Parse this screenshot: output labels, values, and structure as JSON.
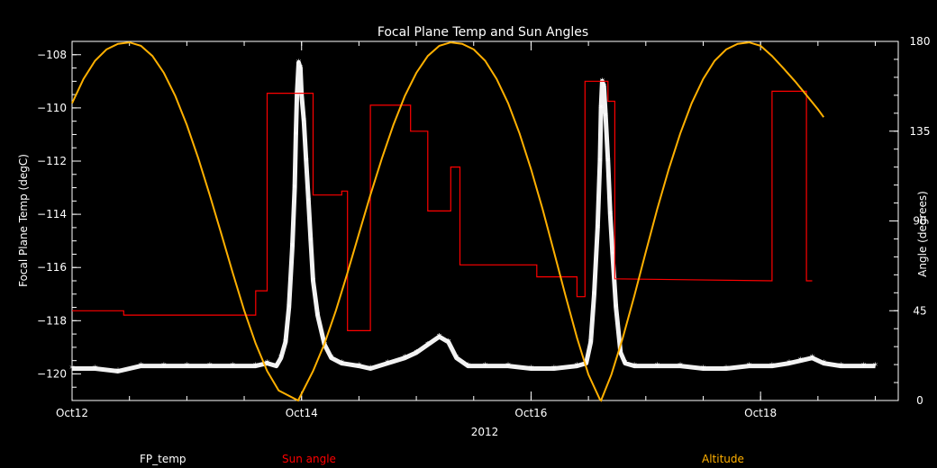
{
  "chart_data": {
    "type": "line",
    "title": "Focal Plane Temp and Sun Angles",
    "xlabel": "2012",
    "ylabel_left": "Focal Plane Temp (degC)",
    "ylabel_right": "Angle (degrees)",
    "x_ticks": [
      {
        "day": 12,
        "label": "Oct12"
      },
      {
        "day": 14,
        "label": "Oct14"
      },
      {
        "day": 16,
        "label": "Oct16"
      },
      {
        "day": 18,
        "label": "Oct18"
      }
    ],
    "xlim": [
      12,
      19.2
    ],
    "ylim_left": [
      -121,
      -107.5
    ],
    "ylim_right": [
      0,
      180
    ],
    "y_ticks_left": [
      -108,
      -110,
      -112,
      -114,
      -116,
      -118,
      -120
    ],
    "y_ticks_right": [
      180,
      135,
      90,
      45,
      0
    ],
    "grid": false,
    "colors": {
      "fp_temp": "#ffffff",
      "sun_angle": "#ff0000",
      "altitude": "#ffb000",
      "background": "#000000"
    },
    "legend": {
      "placement": "bottom",
      "items": [
        {
          "label": "FP_temp",
          "color": "#ffffff"
        },
        {
          "label": "Sun angle",
          "color": "#ff0000"
        },
        {
          "label": "Altitude",
          "color": "#ffb000"
        }
      ]
    },
    "series": [
      {
        "name": "FP_temp",
        "axis": "left",
        "marker": "*",
        "points": [
          [
            12.0,
            -119.8
          ],
          [
            12.2,
            -119.8
          ],
          [
            12.4,
            -119.9
          ],
          [
            12.6,
            -119.7
          ],
          [
            12.8,
            -119.7
          ],
          [
            13.0,
            -119.7
          ],
          [
            13.2,
            -119.7
          ],
          [
            13.4,
            -119.7
          ],
          [
            13.6,
            -119.7
          ],
          [
            13.7,
            -119.6
          ],
          [
            13.78,
            -119.7
          ],
          [
            13.82,
            -119.4
          ],
          [
            13.86,
            -118.8
          ],
          [
            13.89,
            -117.5
          ],
          [
            13.92,
            -115.2
          ],
          [
            13.94,
            -113.0
          ],
          [
            13.95,
            -111.0
          ],
          [
            13.96,
            -109.5
          ],
          [
            13.975,
            -108.3
          ],
          [
            13.99,
            -108.5
          ],
          [
            14.0,
            -109.5
          ],
          [
            14.02,
            -110.5
          ],
          [
            14.04,
            -112.0
          ],
          [
            14.06,
            -113.5
          ],
          [
            14.08,
            -115.0
          ],
          [
            14.1,
            -116.5
          ],
          [
            14.14,
            -117.8
          ],
          [
            14.2,
            -118.9
          ],
          [
            14.26,
            -119.4
          ],
          [
            14.35,
            -119.6
          ],
          [
            14.5,
            -119.7
          ],
          [
            14.6,
            -119.8
          ],
          [
            14.75,
            -119.6
          ],
          [
            14.9,
            -119.4
          ],
          [
            15.0,
            -119.2
          ],
          [
            15.1,
            -118.9
          ],
          [
            15.2,
            -118.6
          ],
          [
            15.28,
            -118.8
          ],
          [
            15.35,
            -119.4
          ],
          [
            15.45,
            -119.7
          ],
          [
            15.6,
            -119.7
          ],
          [
            15.8,
            -119.7
          ],
          [
            16.0,
            -119.8
          ],
          [
            16.2,
            -119.8
          ],
          [
            16.4,
            -119.7
          ],
          [
            16.48,
            -119.6
          ],
          [
            16.52,
            -118.8
          ],
          [
            16.55,
            -117.0
          ],
          [
            16.58,
            -114.5
          ],
          [
            16.6,
            -112.0
          ],
          [
            16.61,
            -110.0
          ],
          [
            16.62,
            -109.0
          ],
          [
            16.635,
            -109.2
          ],
          [
            16.65,
            -110.3
          ],
          [
            16.67,
            -112.0
          ],
          [
            16.69,
            -114.0
          ],
          [
            16.71,
            -115.5
          ],
          [
            16.74,
            -117.5
          ],
          [
            16.78,
            -119.2
          ],
          [
            16.82,
            -119.6
          ],
          [
            16.9,
            -119.7
          ],
          [
            17.1,
            -119.7
          ],
          [
            17.3,
            -119.7
          ],
          [
            17.5,
            -119.8
          ],
          [
            17.7,
            -119.8
          ],
          [
            17.9,
            -119.7
          ],
          [
            18.1,
            -119.7
          ],
          [
            18.25,
            -119.6
          ],
          [
            18.35,
            -119.5
          ],
          [
            18.45,
            -119.4
          ],
          [
            18.55,
            -119.6
          ],
          [
            18.7,
            -119.7
          ],
          [
            18.9,
            -119.7
          ],
          [
            19.0,
            -119.7
          ]
        ]
      },
      {
        "name": "Sun angle",
        "axis": "right",
        "step": true,
        "points": [
          [
            12.0,
            45.0
          ],
          [
            12.45,
            45.0
          ],
          [
            12.45,
            42.8
          ],
          [
            13.6,
            42.8
          ],
          [
            13.6,
            55.0
          ],
          [
            13.7,
            55.0
          ],
          [
            13.7,
            154.0
          ],
          [
            14.1,
            154.0
          ],
          [
            14.1,
            103.0
          ],
          [
            14.35,
            103.0
          ],
          [
            14.35,
            105.0
          ],
          [
            14.4,
            105.0
          ],
          [
            14.4,
            35.0
          ],
          [
            14.6,
            35.0
          ],
          [
            14.6,
            148.0
          ],
          [
            14.95,
            148.0
          ],
          [
            14.95,
            135.0
          ],
          [
            15.1,
            135.0
          ],
          [
            15.1,
            95.0
          ],
          [
            15.3,
            95.0
          ],
          [
            15.3,
            117.0
          ],
          [
            15.38,
            117.0
          ],
          [
            15.38,
            68.0
          ],
          [
            16.05,
            68.0
          ],
          [
            16.05,
            62.0
          ],
          [
            16.4,
            62.0
          ],
          [
            16.4,
            52.0
          ],
          [
            16.47,
            52.0
          ],
          [
            16.47,
            160.0
          ],
          [
            16.67,
            160.0
          ],
          [
            16.67,
            150.0
          ],
          [
            16.73,
            150.0
          ],
          [
            16.73,
            61.0
          ],
          [
            18.1,
            60.0
          ],
          [
            18.1,
            155.0
          ],
          [
            18.4,
            155.0
          ],
          [
            18.4,
            60.0
          ],
          [
            18.45,
            60.0
          ]
        ]
      },
      {
        "name": "Altitude",
        "axis": "right",
        "points": [
          [
            12.0,
            149.0
          ],
          [
            12.1,
            161.2
          ],
          [
            12.2,
            170.3
          ],
          [
            12.3,
            176.0
          ],
          [
            12.4,
            178.8
          ],
          [
            12.5,
            179.5
          ],
          [
            12.6,
            177.8
          ],
          [
            12.7,
            172.7
          ],
          [
            12.8,
            164.2
          ],
          [
            12.9,
            152.6
          ],
          [
            13.0,
            138.1
          ],
          [
            13.1,
            121.4
          ],
          [
            13.2,
            103.0
          ],
          [
            13.3,
            83.6
          ],
          [
            13.4,
            64.0
          ],
          [
            13.5,
            45.2
          ],
          [
            13.6,
            28.5
          ],
          [
            13.7,
            14.8
          ],
          [
            13.8,
            5.0
          ],
          [
            13.97,
            0.0
          ],
          [
            14.1,
            14.8
          ],
          [
            14.2,
            28.5
          ],
          [
            14.3,
            45.2
          ],
          [
            14.4,
            64.0
          ],
          [
            14.5,
            83.6
          ],
          [
            14.6,
            103.0
          ],
          [
            14.7,
            121.4
          ],
          [
            14.8,
            138.1
          ],
          [
            14.9,
            152.6
          ],
          [
            15.0,
            164.2
          ],
          [
            15.1,
            172.7
          ],
          [
            15.2,
            177.8
          ],
          [
            15.3,
            179.5
          ],
          [
            15.4,
            178.8
          ],
          [
            15.5,
            176.0
          ],
          [
            15.6,
            170.3
          ],
          [
            15.7,
            161.2
          ],
          [
            15.8,
            149.0
          ],
          [
            15.9,
            133.8
          ],
          [
            16.0,
            116.0
          ],
          [
            16.1,
            96.0
          ],
          [
            16.2,
            74.5
          ],
          [
            16.3,
            52.5
          ],
          [
            16.4,
            31.5
          ],
          [
            16.5,
            13.0
          ],
          [
            16.6,
            0.5
          ],
          [
            16.61,
            0.0
          ],
          [
            16.7,
            13.0
          ],
          [
            16.8,
            31.5
          ],
          [
            16.9,
            52.5
          ],
          [
            17.0,
            74.5
          ],
          [
            17.1,
            96.0
          ],
          [
            17.2,
            116.0
          ],
          [
            17.3,
            133.8
          ],
          [
            17.4,
            149.0
          ],
          [
            17.5,
            161.2
          ],
          [
            17.6,
            170.3
          ],
          [
            17.7,
            176.0
          ],
          [
            17.8,
            178.8
          ],
          [
            17.9,
            179.5
          ],
          [
            18.0,
            177.8
          ],
          [
            18.1,
            172.7
          ],
          [
            18.2,
            166.5
          ],
          [
            18.3,
            160.0
          ],
          [
            18.4,
            153.0
          ],
          [
            18.5,
            146.0
          ],
          [
            18.55,
            142.0
          ]
        ]
      }
    ]
  }
}
